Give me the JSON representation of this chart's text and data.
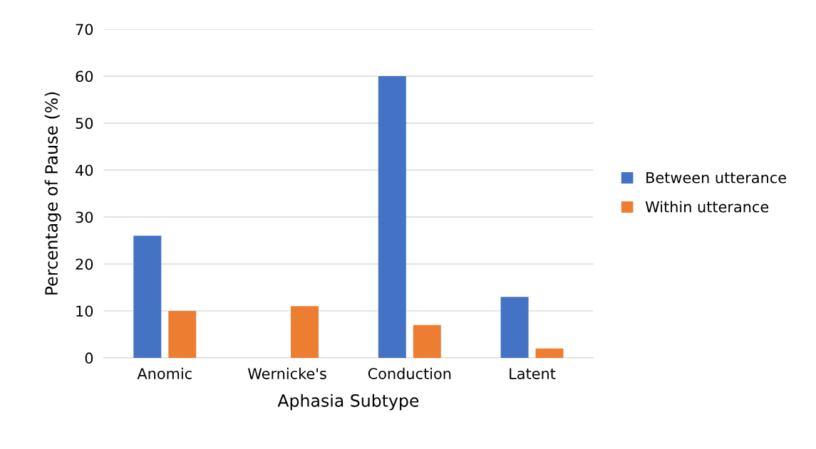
{
  "chart_data": {
    "type": "bar",
    "xlabel": "Aphasia Subtype",
    "ylabel": "Percentage of Pause (%)",
    "categories": [
      "Anomic",
      "Wernicke's",
      "Conduction",
      "Latent"
    ],
    "series": [
      {
        "name": "Between utterance",
        "color": "#4472c4",
        "values": [
          26,
          0,
          60,
          13
        ]
      },
      {
        "name": "Within utterance",
        "color": "#ed7d31",
        "values": [
          10,
          11,
          7,
          2
        ]
      }
    ],
    "ylim": [
      0,
      70
    ],
    "yticks": [
      0,
      10,
      20,
      30,
      40,
      50,
      60,
      70
    ],
    "grid": "y",
    "legend": "right"
  }
}
